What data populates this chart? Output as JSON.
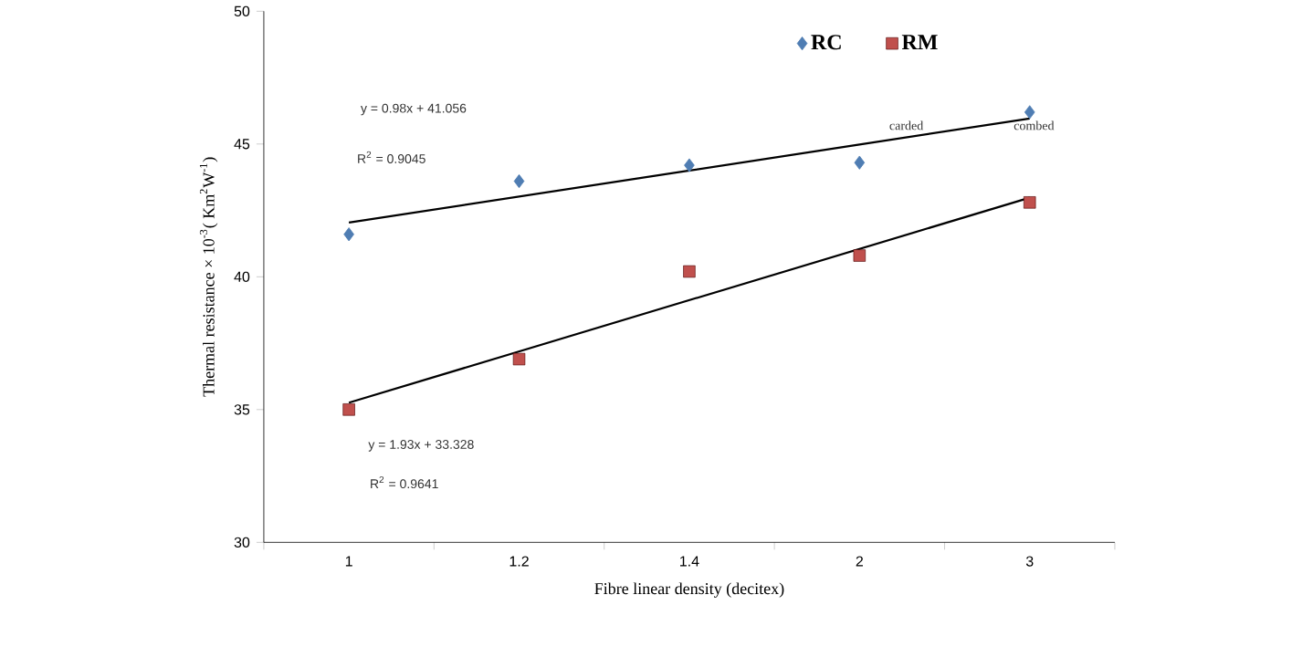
{
  "chart_data": {
    "type": "scatter",
    "xlabel": "Fibre linear density (decitex)",
    "ylabel": "Thermal resistance × 10$^{-3}$( Km$^{2}$W$^{-1}$)",
    "categories": [
      "1",
      "1.2",
      "1.4",
      "2",
      "3"
    ],
    "ylim": [
      30,
      50
    ],
    "yticks": [
      30,
      35,
      40,
      45,
      50
    ],
    "legend": "top right",
    "series": [
      {
        "name": "RC",
        "marker": "diamond",
        "color": "#4f7db3",
        "values": [
          41.6,
          43.6,
          44.2,
          44.3,
          46.2
        ]
      },
      {
        "name": "RM",
        "marker": "square",
        "color": "#c0504d",
        "values": [
          35.0,
          36.9,
          40.2,
          40.8,
          42.8
        ]
      },
      {
        "type": "line",
        "marker": "none",
        "color": "#000000",
        "values": [
          42.04,
          43.02,
          44.0,
          44.98,
          45.96
        ]
      },
      {
        "type": "line",
        "marker": "none",
        "color": "#000000",
        "values": [
          35.26,
          37.19,
          39.12,
          41.05,
          42.98
        ]
      }
    ],
    "annotations": [
      "carded",
      "combed",
      "y = 0.98x + 41.056",
      "R$^{2}$ = 0.9045",
      "y = 1.93x + 33.328",
      "R$^{2}$ = 0.9641"
    ]
  }
}
